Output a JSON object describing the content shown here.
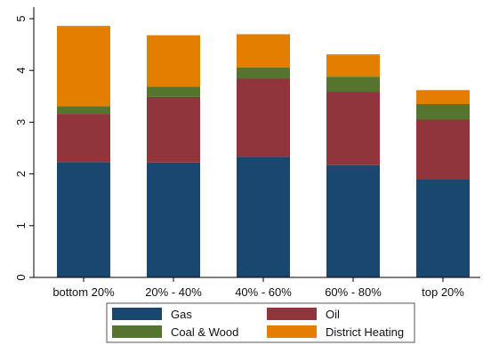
{
  "chart_data": {
    "type": "bar",
    "stacked": true,
    "title": "",
    "xlabel": "",
    "ylabel": "",
    "categories": [
      "bottom 20%",
      "20% - 40%",
      "40% - 60%",
      "60% - 80%",
      "top 20%"
    ],
    "ylim": [
      0,
      5
    ],
    "yticks": [
      0,
      1,
      2,
      3,
      4,
      5
    ],
    "grid": false,
    "legend_position": "bottom",
    "series": [
      {
        "name": "Gas",
        "color": "#1a476f",
        "values": [
          2.23,
          2.22,
          2.33,
          2.17,
          1.89
        ]
      },
      {
        "name": "Oil",
        "color": "#90353b",
        "values": [
          0.93,
          1.27,
          1.51,
          1.42,
          1.16
        ]
      },
      {
        "name": "Coal & Wood",
        "color": "#55752f",
        "values": [
          0.15,
          0.2,
          0.22,
          0.29,
          0.3
        ]
      },
      {
        "name": "District Heating",
        "color": "#e37e00",
        "values": [
          1.55,
          0.99,
          0.64,
          0.43,
          0.27
        ]
      }
    ]
  }
}
